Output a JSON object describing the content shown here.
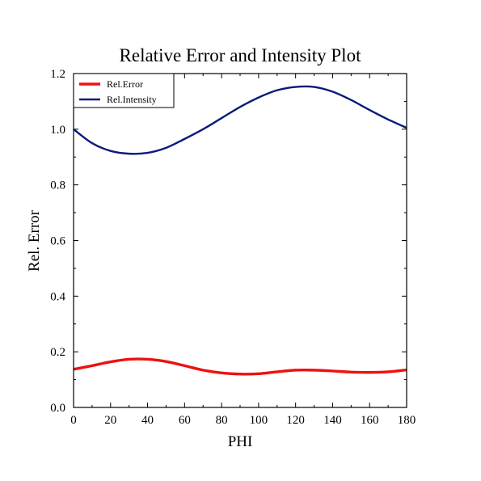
{
  "chart_data": {
    "type": "line",
    "title": "Relative Error and Intensity Plot",
    "xlabel": "PHI",
    "ylabel": "Rel. Error",
    "xlim": [
      0,
      180
    ],
    "ylim": [
      0,
      1.2
    ],
    "xticks": [
      "0",
      "20",
      "40",
      "60",
      "80",
      "100",
      "120",
      "140",
      "160",
      "180"
    ],
    "yticks": [
      "0.0",
      "0.2",
      "0.4",
      "0.6",
      "0.8",
      "1.0",
      "1.2"
    ],
    "grid": false,
    "legend_position": "top-left",
    "x": [
      0,
      10,
      20,
      30,
      40,
      50,
      60,
      70,
      80,
      90,
      100,
      110,
      120,
      130,
      140,
      150,
      160,
      170,
      180
    ],
    "series": [
      {
        "name": "Rel.Error",
        "color": "#ee1111",
        "values": [
          0.137,
          0.15,
          0.164,
          0.173,
          0.173,
          0.165,
          0.15,
          0.134,
          0.124,
          0.12,
          0.121,
          0.128,
          0.134,
          0.134,
          0.131,
          0.127,
          0.126,
          0.128,
          0.135
        ]
      },
      {
        "name": "Rel.Intensity",
        "color": "#0a1a7a",
        "values": [
          1.0,
          0.95,
          0.922,
          0.912,
          0.915,
          0.933,
          0.965,
          1.0,
          1.04,
          1.08,
          1.114,
          1.14,
          1.152,
          1.152,
          1.135,
          1.105,
          1.069,
          1.035,
          1.005
        ]
      }
    ]
  }
}
